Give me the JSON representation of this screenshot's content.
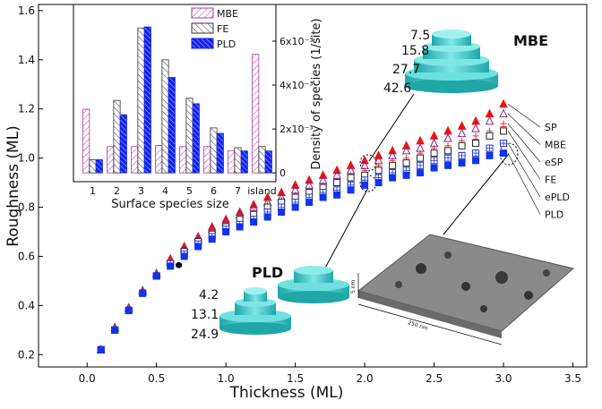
{
  "chart_data": [
    {
      "type": "scatter",
      "x_label": "Thickness (ML)",
      "y_label": "Roughness (ML)",
      "x": [
        0.1,
        0.2,
        0.3,
        0.4,
        0.5,
        0.6,
        0.7,
        0.8,
        0.9,
        1.0,
        1.1,
        1.2,
        1.3,
        1.4,
        1.5,
        1.6,
        1.7,
        1.8,
        1.9,
        2.0,
        2.1,
        2.2,
        2.3,
        2.4,
        2.5,
        2.6,
        2.7,
        2.8,
        2.9,
        3.0
      ],
      "xlim": [
        -0.35,
        3.6
      ],
      "xticks": [
        {
          "value": 0,
          "label": "0.0"
        },
        0.5,
        {
          "value": 1,
          "label": "1.0"
        },
        1.5,
        {
          "value": 2,
          "label": "2.0"
        },
        2.5,
        {
          "value": 3,
          "label": "3.0"
        },
        3.5
      ],
      "ylim": [
        0.15,
        1.625
      ],
      "yticks": [
        0.2,
        0.4,
        0.6,
        0.8,
        {
          "value": 1,
          "label": "1.0"
        },
        1.2,
        1.4,
        1.6
      ],
      "series": [
        {
          "name": "SP",
          "color": "#ee1111",
          "marker": "triangle-filled",
          "values": [
            0.22,
            0.31,
            0.39,
            0.46,
            0.53,
            0.59,
            0.64,
            0.68,
            0.72,
            0.75,
            0.78,
            0.81,
            0.84,
            0.86,
            0.89,
            0.91,
            0.93,
            0.95,
            0.97,
            0.99,
            1.01,
            1.03,
            1.05,
            1.07,
            1.09,
            1.11,
            1.13,
            1.15,
            1.18,
            1.22
          ]
        },
        {
          "name": "MBE",
          "color": "#7a2a9a",
          "marker": "triangle-open",
          "values": [
            0.22,
            0.31,
            0.39,
            0.46,
            0.53,
            0.58,
            0.63,
            0.67,
            0.71,
            0.74,
            0.77,
            0.8,
            0.82,
            0.84,
            0.87,
            0.89,
            0.91,
            0.93,
            0.95,
            0.97,
            0.99,
            1.01,
            1.03,
            1.04,
            1.06,
            1.08,
            1.1,
            1.12,
            1.15,
            1.18
          ]
        },
        {
          "name": "eSP",
          "color": "#ee3333",
          "marker": "circle-plus",
          "values": [
            0.22,
            0.31,
            0.39,
            0.46,
            0.53,
            0.58,
            0.62,
            0.66,
            0.7,
            0.73,
            0.76,
            0.78,
            0.81,
            0.83,
            0.85,
            0.87,
            0.89,
            0.91,
            0.93,
            0.95,
            0.97,
            0.99,
            1.0,
            1.02,
            1.04,
            1.05,
            1.07,
            1.09,
            1.11,
            1.14
          ]
        },
        {
          "name": "FE",
          "color": "#222222",
          "marker": "square-open",
          "values": [
            0.22,
            0.3,
            0.38,
            0.45,
            0.52,
            0.57,
            0.62,
            0.66,
            0.69,
            0.72,
            0.75,
            0.77,
            0.8,
            0.82,
            0.84,
            0.86,
            0.88,
            0.9,
            0.92,
            0.93,
            0.95,
            0.97,
            0.98,
            1.0,
            1.02,
            1.03,
            1.05,
            1.06,
            1.09,
            1.11
          ]
        },
        {
          "name": "ePLD",
          "color": "#2233cc",
          "marker": "square-cross",
          "values": [
            0.22,
            0.3,
            0.38,
            0.45,
            0.52,
            0.57,
            0.61,
            0.65,
            0.68,
            0.71,
            0.73,
            0.75,
            0.78,
            0.8,
            0.82,
            0.84,
            0.86,
            0.87,
            0.89,
            0.91,
            0.92,
            0.94,
            0.95,
            0.97,
            0.99,
            1.0,
            1.01,
            1.02,
            1.04,
            1.06
          ]
        },
        {
          "name": "PLD",
          "color": "#1133ee",
          "marker": "square-filled",
          "values": [
            0.22,
            0.3,
            0.38,
            0.45,
            0.52,
            0.56,
            0.6,
            0.64,
            0.67,
            0.7,
            0.72,
            0.74,
            0.76,
            0.78,
            0.8,
            0.82,
            0.84,
            0.85,
            0.87,
            0.89,
            0.9,
            0.92,
            0.93,
            0.94,
            0.96,
            0.97,
            0.98,
            0.99,
            1.01,
            1.02
          ]
        }
      ],
      "annotations": {
        "mbe_title": "MBE",
        "mbe_layers": [
          "7.5",
          "15.8",
          "27.7",
          "42.6"
        ],
        "pld_title": "PLD",
        "pld_layers": [
          "4.2",
          "13.1",
          "24.9"
        ],
        "afm_height": "5 nm",
        "afm_width": "250 nm"
      }
    },
    {
      "type": "bar",
      "x_label": "Surface species size",
      "y_label": "Density of species (1/site)",
      "categories": [
        "1",
        "2",
        "3",
        "4",
        "5",
        "6",
        "7",
        "island"
      ],
      "ylim": [
        -0.0004,
        0.00767
      ],
      "yticks": [
        {
          "value": 0,
          "label": "0"
        },
        {
          "value": 0.002,
          "label": "2x10⁻³"
        },
        {
          "value": 0.004,
          "label": "4x10⁻³"
        },
        {
          "value": 0.006,
          "label": "6x10⁻³"
        }
      ],
      "series": [
        {
          "name": "MBE",
          "color": "#b03aa0",
          "values": [
            0.0029,
            0.0012,
            0.0012,
            0.00125,
            0.0012,
            0.0012,
            0.001,
            0.0054
          ]
        },
        {
          "name": "FE",
          "color": "#333333",
          "values": [
            0.0006,
            0.0033,
            0.0066,
            0.00515,
            0.0034,
            0.00205,
            0.00115,
            0.0012
          ]
        },
        {
          "name": "PLD",
          "color": "#1122ee",
          "values": [
            0.0006,
            0.00265,
            0.00665,
            0.00435,
            0.00315,
            0.0018,
            0.001,
            0.001
          ]
        }
      ]
    }
  ]
}
